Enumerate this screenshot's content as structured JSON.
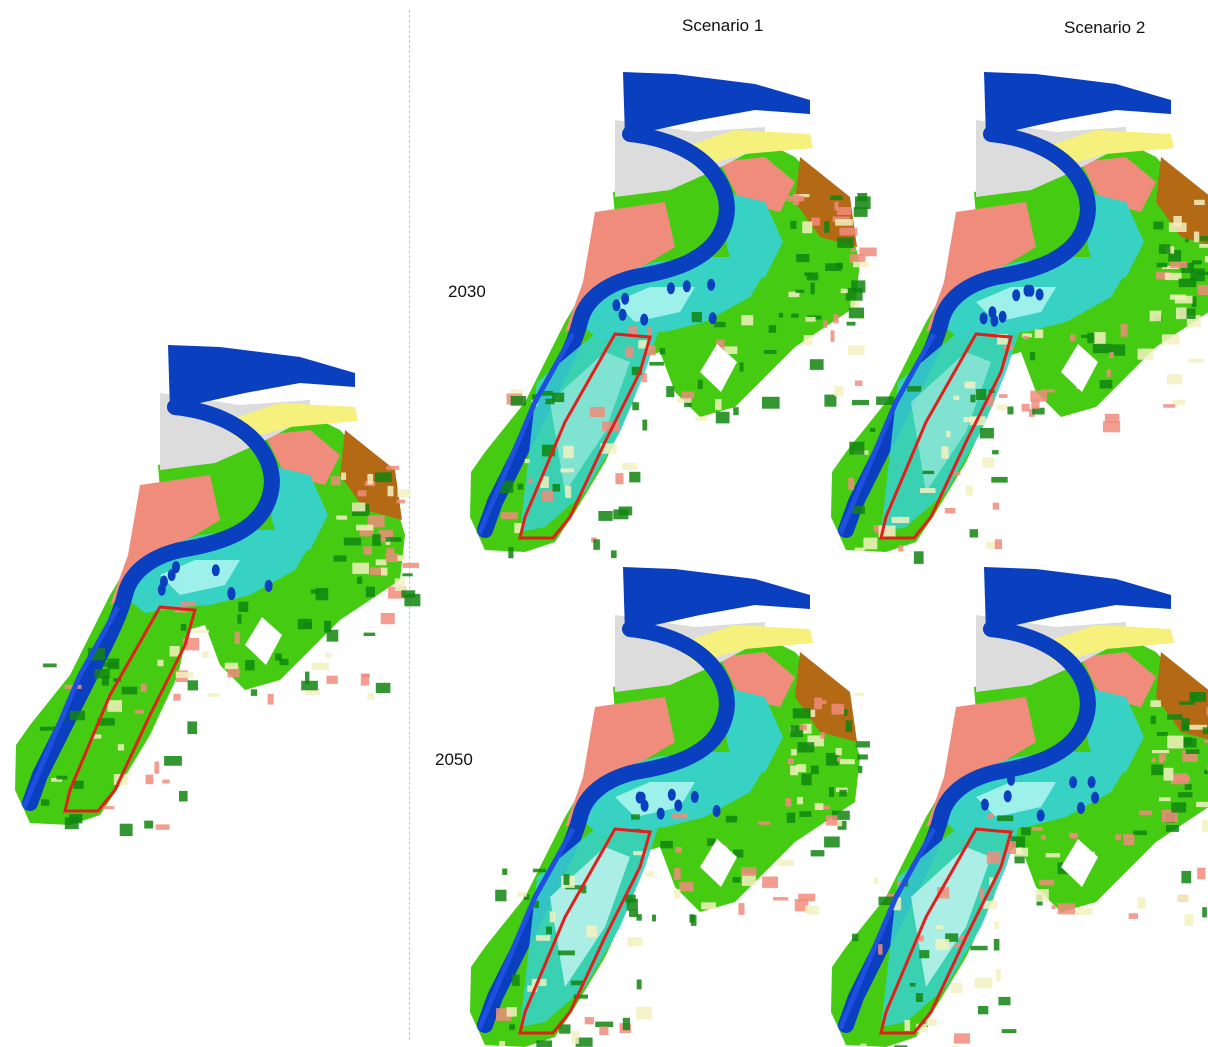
{
  "columns": {
    "scenario1": "Scenario 1",
    "scenario2": "Scenario 2"
  },
  "rows": {
    "year1": "2030",
    "year2": "2050"
  },
  "colors": {
    "deep_water": "#0a3fbf",
    "sand_grey": "#dcdcdc",
    "dune_yellow": "#f6f17c",
    "tidal_cyan": "#37d2c4",
    "light_cyan": "#9ef1ea",
    "pale_cyan": "#c8f5f1",
    "salmon": "#f08c7c",
    "field_green": "#45cc12",
    "dark_green": "#118511",
    "brown": "#b46914",
    "cream": "#f3f1c0",
    "boundary_red": "#e0201c",
    "canal_blue": "#1e4fe0"
  },
  "maps": [
    {
      "name": "baseline"
    },
    {
      "name": "scenario1-2030"
    },
    {
      "name": "scenario2-2030"
    },
    {
      "name": "scenario1-2050"
    },
    {
      "name": "scenario2-2050"
    }
  ]
}
